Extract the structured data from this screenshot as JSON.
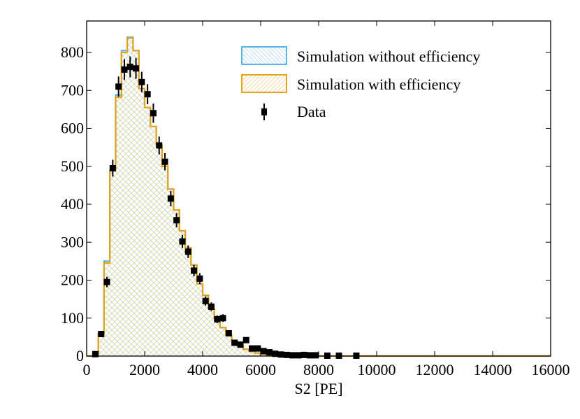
{
  "chart_data": {
    "type": "bar",
    "title": "",
    "xlabel": "S2 [PE]",
    "ylabel": "",
    "xlim": [
      0,
      16000
    ],
    "ylim": [
      0,
      850
    ],
    "xticks": [
      0,
      2000,
      4000,
      6000,
      8000,
      10000,
      12000,
      14000,
      16000
    ],
    "xtick_labels": [
      "0",
      "2000",
      "4000",
      "6000",
      "8000",
      "10000",
      "12000",
      "14000",
      "16000"
    ],
    "yticks": [
      0,
      100,
      200,
      300,
      400,
      500,
      600,
      700,
      800
    ],
    "ytick_labels": [
      "0",
      "100",
      "200",
      "300",
      "400",
      "500",
      "600",
      "700",
      "800"
    ],
    "grid": false,
    "legend_position": "top-right",
    "bin_width": 200,
    "bin_edges_start": 400,
    "series": [
      {
        "name": "Simulation without efficiency",
        "kind": "step-histogram",
        "color": "#5ab4e5",
        "hatch": "backslash",
        "values": [
          60,
          250,
          490,
          688,
          805,
          840,
          805,
          705,
          655,
          605,
          555,
          500,
          440,
          385,
          330,
          285,
          240,
          190,
          160,
          125,
          100,
          75,
          55,
          40,
          28,
          18,
          12,
          8,
          5,
          3,
          2,
          1,
          1,
          0,
          0,
          0,
          0,
          0,
          0,
          0
        ]
      },
      {
        "name": "Simulation with efficiency",
        "kind": "step-histogram",
        "color": "#e5a31c",
        "hatch": "slash",
        "values": [
          58,
          245,
          488,
          682,
          800,
          838,
          805,
          705,
          655,
          605,
          555,
          500,
          440,
          385,
          330,
          285,
          240,
          190,
          160,
          125,
          100,
          75,
          55,
          40,
          28,
          18,
          12,
          8,
          5,
          3,
          2,
          1,
          1,
          0,
          0,
          0,
          0,
          0,
          0,
          0
        ]
      },
      {
        "name": "Data",
        "kind": "errorbar",
        "color": "#000000",
        "x": [
          300,
          500,
          700,
          900,
          1100,
          1300,
          1500,
          1700,
          1900,
          2100,
          2300,
          2500,
          2700,
          2900,
          3100,
          3300,
          3500,
          3700,
          3900,
          4100,
          4300,
          4500,
          4700,
          4900,
          5100,
          5300,
          5500,
          5700,
          5900,
          6100,
          6300,
          6500,
          6700,
          6900,
          7100,
          7300,
          7500,
          7700,
          7900,
          8300,
          8700,
          9300
        ],
        "values": [
          5,
          58,
          195,
          495,
          710,
          755,
          762,
          758,
          722,
          690,
          640,
          555,
          512,
          415,
          358,
          302,
          275,
          225,
          204,
          145,
          130,
          97,
          100,
          60,
          35,
          30,
          42,
          20,
          20,
          13,
          10,
          6,
          4,
          3,
          2,
          2,
          3,
          2,
          2,
          1,
          1,
          1
        ]
      }
    ],
    "legend": [
      {
        "label": "Simulation without efficiency",
        "color": "#5ab4e5",
        "type": "patch"
      },
      {
        "label": "Simulation with efficiency",
        "color": "#e5a31c",
        "type": "patch"
      },
      {
        "label": "Data",
        "color": "#000000",
        "type": "errorbar"
      }
    ]
  }
}
